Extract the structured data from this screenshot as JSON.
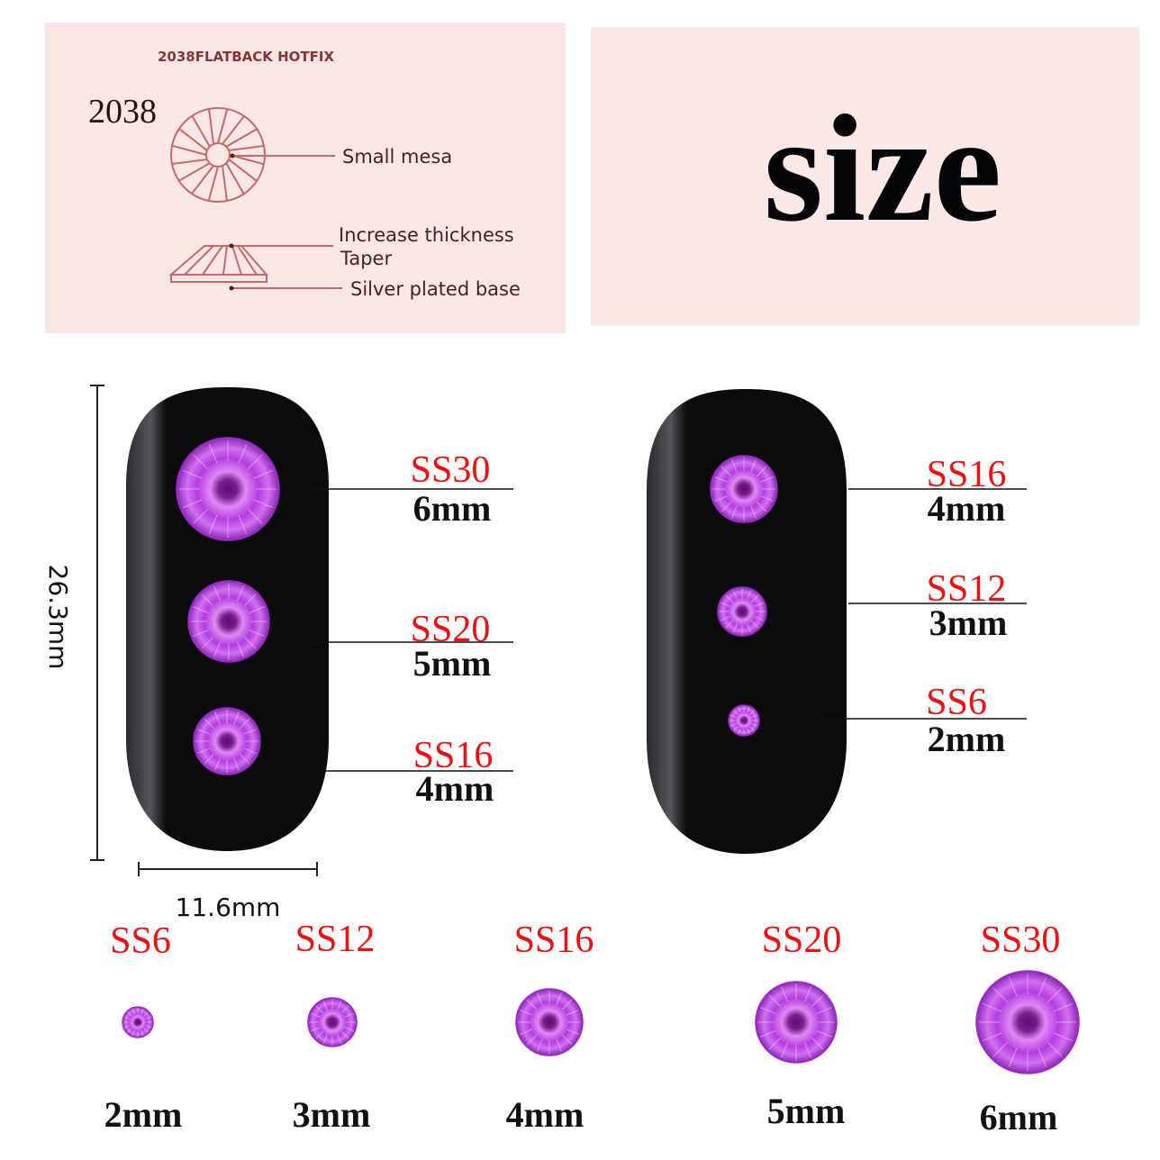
{
  "diagram": {
    "header": "2038FLATBACK HOTFIX",
    "model": "2038",
    "labels": [
      "Small mesa",
      "Increase thickness",
      "Taper",
      "Silver plated base"
    ]
  },
  "headline": "size",
  "colors": {
    "panel": "#fae7e5",
    "diagram_line": "#c46a6a",
    "size_code": "#ee1111",
    "gem": "#b43ee0",
    "nail": "#0b0b0d"
  },
  "dimensions": {
    "height": "26.3mm",
    "width": "11.6mm"
  },
  "left_nail": [
    {
      "code": "SS30",
      "size": "6mm"
    },
    {
      "code": "SS20",
      "size": "5mm"
    },
    {
      "code": "SS16",
      "size": "4mm"
    }
  ],
  "right_nail": [
    {
      "code": "SS16",
      "size": "4mm"
    },
    {
      "code": "SS12",
      "size": "3mm"
    },
    {
      "code": "SS6",
      "size": "2mm"
    }
  ],
  "size_row": [
    {
      "code": "SS6",
      "size": "2mm"
    },
    {
      "code": "SS12",
      "size": "3mm"
    },
    {
      "code": "SS16",
      "size": "4mm"
    },
    {
      "code": "SS20",
      "size": "5mm"
    },
    {
      "code": "SS30",
      "size": "6mm"
    }
  ]
}
